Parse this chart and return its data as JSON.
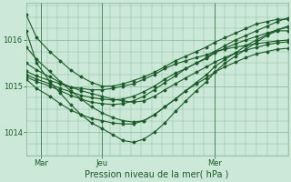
{
  "xlabel": "Pression niveau de la mer( hPa )",
  "bg_color": "#cce8d8",
  "grid_color": "#88b898",
  "line_color": "#1a5c28",
  "ylim": [
    1013.5,
    1016.8
  ],
  "xlim": [
    0.0,
    1.0
  ],
  "xtick_positions": [
    0.055,
    0.29,
    0.72
  ],
  "xtick_labels": [
    "Mar",
    "Jeu",
    "Mer"
  ],
  "ytick_positions": [
    1014,
    1015,
    1016
  ],
  "ytick_labels": [
    "1014",
    "1015",
    "1016"
  ],
  "vline_positions": [
    0.055,
    0.29,
    0.72
  ],
  "series": [
    {
      "x": [
        0.0,
        0.04,
        0.09,
        0.13,
        0.17,
        0.21,
        0.25,
        0.29,
        0.33,
        0.37,
        0.41,
        0.45,
        0.49,
        0.53,
        0.57,
        0.61,
        0.65,
        0.69,
        0.72,
        0.76,
        0.8,
        0.84,
        0.88,
        0.92,
        0.96,
        1.0
      ],
      "y": [
        1016.55,
        1016.05,
        1015.75,
        1015.55,
        1015.35,
        1015.2,
        1015.08,
        1015.0,
        1015.0,
        1015.05,
        1015.12,
        1015.2,
        1015.3,
        1015.42,
        1015.55,
        1015.65,
        1015.75,
        1015.85,
        1015.95,
        1016.05,
        1016.15,
        1016.25,
        1016.35,
        1016.4,
        1016.45,
        1016.45
      ]
    },
    {
      "x": [
        0.0,
        0.04,
        0.09,
        0.13,
        0.17,
        0.21,
        0.25,
        0.29,
        0.33,
        0.37,
        0.41,
        0.45,
        0.49,
        0.53,
        0.57,
        0.61,
        0.65,
        0.69,
        0.72,
        0.76,
        0.8,
        0.84,
        0.88,
        0.92,
        0.96,
        1.0
      ],
      "y": [
        1016.2,
        1015.5,
        1015.1,
        1014.85,
        1014.6,
        1014.38,
        1014.2,
        1014.08,
        1013.95,
        1013.82,
        1013.78,
        1013.85,
        1014.0,
        1014.2,
        1014.45,
        1014.68,
        1014.9,
        1015.1,
        1015.3,
        1015.5,
        1015.65,
        1015.8,
        1015.95,
        1016.1,
        1016.2,
        1016.2
      ]
    },
    {
      "x": [
        0.0,
        0.04,
        0.09,
        0.13,
        0.17,
        0.21,
        0.25,
        0.29,
        0.33,
        0.37,
        0.41,
        0.45,
        0.49,
        0.53,
        0.57,
        0.61,
        0.65,
        0.69,
        0.72,
        0.76,
        0.8,
        0.84,
        0.88,
        0.92,
        0.96,
        1.0
      ],
      "y": [
        1015.15,
        1014.95,
        1014.78,
        1014.62,
        1014.48,
        1014.38,
        1014.3,
        1014.25,
        1014.2,
        1014.18,
        1014.18,
        1014.25,
        1014.38,
        1014.55,
        1014.72,
        1014.9,
        1015.08,
        1015.25,
        1015.42,
        1015.58,
        1015.72,
        1015.88,
        1016.0,
        1016.12,
        1016.22,
        1016.3
      ]
    },
    {
      "x": [
        0.0,
        0.04,
        0.09,
        0.13,
        0.17,
        0.21,
        0.25,
        0.29,
        0.33,
        0.37,
        0.41,
        0.45,
        0.49,
        0.53,
        0.57,
        0.61,
        0.65,
        0.69,
        0.72,
        0.76,
        0.8,
        0.84,
        0.88,
        0.92,
        0.96,
        1.0
      ],
      "y": [
        1015.2,
        1015.1,
        1015.0,
        1014.9,
        1014.8,
        1014.72,
        1014.65,
        1014.62,
        1014.6,
        1014.62,
        1014.68,
        1014.78,
        1014.92,
        1015.08,
        1015.22,
        1015.38,
        1015.5,
        1015.62,
        1015.75,
        1015.88,
        1016.0,
        1016.1,
        1016.2,
        1016.3,
        1016.4,
        1016.48
      ]
    },
    {
      "x": [
        0.0,
        0.04,
        0.09,
        0.13,
        0.17,
        0.21,
        0.25,
        0.29,
        0.33,
        0.37,
        0.41,
        0.45,
        0.49,
        0.53,
        0.57,
        0.61,
        0.65,
        0.69,
        0.72,
        0.76,
        0.8,
        0.84,
        0.88,
        0.92,
        0.96,
        1.0
      ],
      "y": [
        1015.25,
        1015.15,
        1015.05,
        1014.95,
        1014.88,
        1014.8,
        1014.75,
        1014.72,
        1014.7,
        1014.72,
        1014.78,
        1014.88,
        1015.0,
        1015.15,
        1015.28,
        1015.38,
        1015.5,
        1015.6,
        1015.72,
        1015.82,
        1015.92,
        1016.0,
        1016.08,
        1016.15,
        1016.22,
        1016.28
      ]
    },
    {
      "x": [
        0.0,
        0.04,
        0.09,
        0.13,
        0.17,
        0.21,
        0.25,
        0.29,
        0.33,
        0.37,
        0.41,
        0.45,
        0.49,
        0.53,
        0.57,
        0.61,
        0.65,
        0.69,
        0.72,
        0.76,
        0.8,
        0.84,
        0.88,
        0.92,
        0.96,
        1.0
      ],
      "y": [
        1015.32,
        1015.22,
        1015.12,
        1015.05,
        1014.98,
        1014.95,
        1014.92,
        1014.92,
        1014.95,
        1015.0,
        1015.05,
        1015.15,
        1015.25,
        1015.38,
        1015.48,
        1015.55,
        1015.62,
        1015.68,
        1015.75,
        1015.8,
        1015.85,
        1015.88,
        1015.92,
        1015.95,
        1015.98,
        1016.0
      ]
    },
    {
      "x": [
        0.0,
        0.04,
        0.09,
        0.13,
        0.17,
        0.21,
        0.25,
        0.29,
        0.33,
        0.37,
        0.41,
        0.45,
        0.49,
        0.53,
        0.57,
        0.61,
        0.65,
        0.69,
        0.72,
        0.76,
        0.8,
        0.84,
        0.88,
        0.92,
        0.96,
        1.0
      ],
      "y": [
        1015.5,
        1015.35,
        1015.2,
        1015.08,
        1014.98,
        1014.9,
        1014.84,
        1014.78,
        1014.72,
        1014.68,
        1014.65,
        1014.68,
        1014.78,
        1014.92,
        1015.05,
        1015.18,
        1015.3,
        1015.42,
        1015.52,
        1015.62,
        1015.72,
        1015.78,
        1015.84,
        1015.9,
        1015.94,
        1015.96
      ]
    },
    {
      "x": [
        0.0,
        0.04,
        0.09,
        0.13,
        0.17,
        0.21,
        0.25,
        0.29,
        0.33,
        0.37,
        0.41,
        0.45,
        0.49,
        0.53,
        0.57,
        0.61,
        0.65,
        0.69,
        0.72,
        0.76,
        0.8,
        0.84,
        0.88,
        0.92,
        0.96,
        1.0
      ],
      "y": [
        1015.85,
        1015.58,
        1015.32,
        1015.1,
        1014.9,
        1014.72,
        1014.55,
        1014.42,
        1014.32,
        1014.25,
        1014.22,
        1014.25,
        1014.38,
        1014.55,
        1014.72,
        1014.9,
        1015.05,
        1015.18,
        1015.3,
        1015.42,
        1015.52,
        1015.62,
        1015.7,
        1015.75,
        1015.8,
        1015.82
      ]
    }
  ]
}
